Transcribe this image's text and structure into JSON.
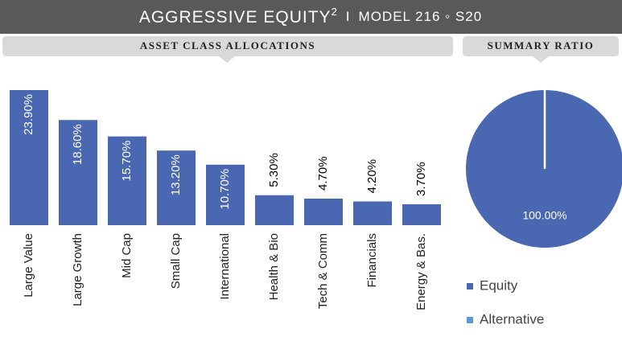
{
  "header": {
    "title": "AGGRESSIVE EQUITY",
    "title_superscript": "2",
    "separator": "I",
    "subtitle": "MODEL 216 ◦ S20"
  },
  "sections": [
    "ASSET CLASS ALLOCATIONS",
    "SUMMARY RATIO"
  ],
  "chart_data": [
    {
      "type": "bar",
      "color": "#4a67b2",
      "categories": [
        "Large Value",
        "Large Growth",
        "Mid Cap",
        "Small Cap",
        "International",
        "Health & Bio",
        "Tech & Comm",
        "Financials",
        "Energy & Bas."
      ],
      "values": [
        23.9,
        18.6,
        15.7,
        13.2,
        10.7,
        5.3,
        4.7,
        4.2,
        3.7
      ],
      "value_labels": [
        "23.90%",
        "18.60%",
        "15.70%",
        "13.20%",
        "10.70%",
        "5.30%",
        "4.70%",
        "4.20%",
        "3.70%"
      ]
    },
    {
      "type": "pie",
      "legend": "bottom",
      "series": [
        {
          "name": "Equity",
          "color": "#4a67b2"
        },
        {
          "name": "Alternative",
          "color": "#5b9bd5"
        }
      ],
      "values": [
        100,
        0
      ],
      "value_labels": [
        "100.00%",
        null
      ]
    }
  ]
}
